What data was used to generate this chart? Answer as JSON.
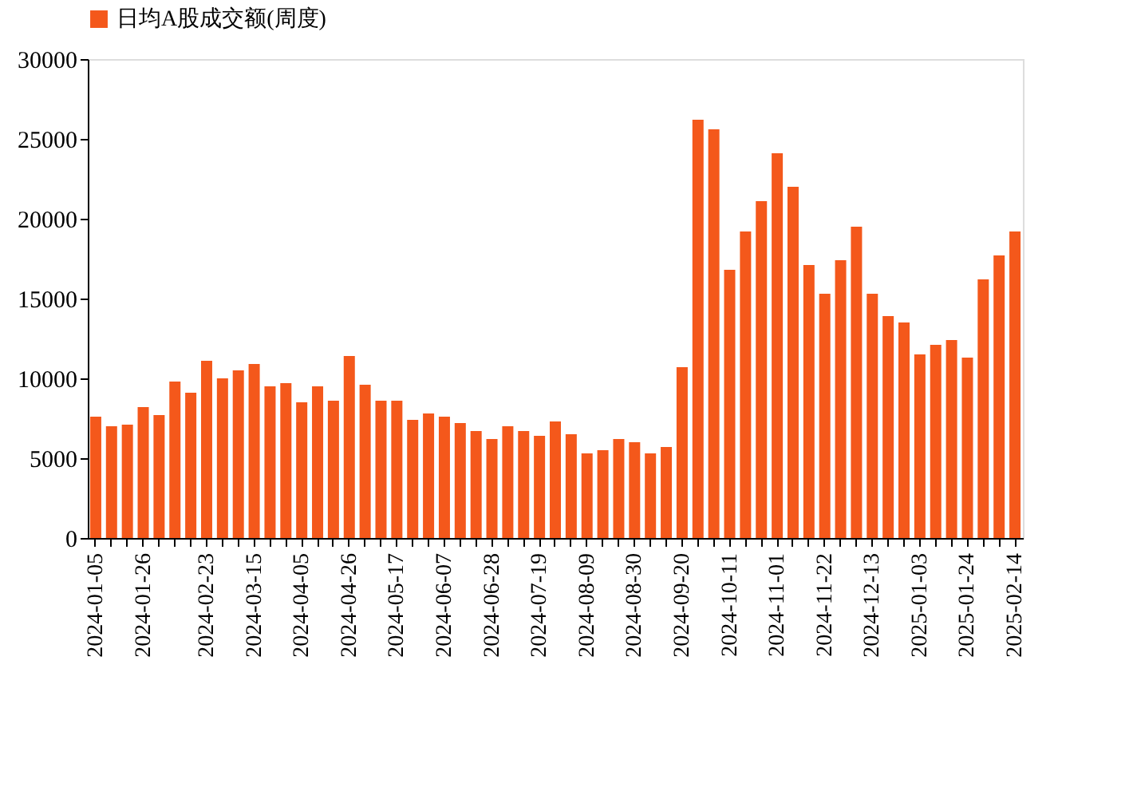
{
  "chart_data": {
    "type": "bar",
    "categories": [
      "2024-01-05",
      null,
      null,
      "2024-01-26",
      null,
      null,
      null,
      "2024-02-23",
      null,
      null,
      "2024-03-15",
      null,
      null,
      "2024-04-05",
      null,
      null,
      "2024-04-26",
      null,
      null,
      "2024-05-17",
      null,
      null,
      "2024-06-07",
      null,
      null,
      "2024-06-28",
      null,
      null,
      "2024-07-19",
      null,
      null,
      "2024-08-09",
      null,
      null,
      "2024-08-30",
      null,
      null,
      "2024-09-20",
      null,
      null,
      "2024-10-11",
      null,
      null,
      "2024-11-01",
      null,
      null,
      "2024-11-22",
      null,
      null,
      "2024-12-13",
      null,
      null,
      "2025-01-03",
      null,
      null,
      "2025-01-24",
      null,
      null,
      "2025-02-14"
    ],
    "series": [
      {
        "name": "日均A股成交额(周度)",
        "color": "#f4581b",
        "values": [
          7600,
          7000,
          7100,
          8200,
          7700,
          9800,
          9100,
          11100,
          10000,
          10500,
          10900,
          9500,
          9700,
          8500,
          9500,
          8600,
          11400,
          9600,
          8600,
          8600,
          7400,
          7800,
          7600,
          7200,
          6700,
          6200,
          7000,
          6700,
          6400,
          7300,
          6500,
          5300,
          5500,
          6200,
          6000,
          5300,
          5700,
          10700,
          26200,
          25600,
          16800,
          19200,
          21100,
          24100,
          22000,
          17100,
          15300,
          17400,
          19500,
          15300,
          13900,
          13500,
          11500,
          12100,
          12400,
          11300,
          16200,
          17700,
          19200
        ]
      }
    ],
    "ylim": [
      0,
      30000
    ],
    "yticks": [
      0,
      5000,
      10000,
      15000,
      20000,
      25000,
      30000
    ],
    "grid": false,
    "legend": "top"
  }
}
